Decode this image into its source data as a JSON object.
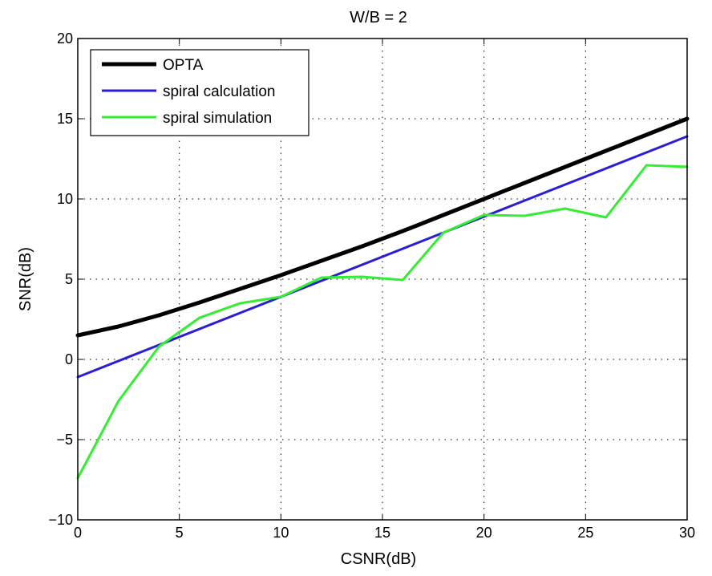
{
  "chart_data": {
    "type": "line",
    "title": "W/B = 2",
    "xlabel": "CSNR(dB)",
    "ylabel": "SNR(dB)",
    "xlim": [
      0,
      30
    ],
    "ylim": [
      -10,
      20
    ],
    "xticks": [
      0,
      5,
      10,
      15,
      20,
      25,
      30
    ],
    "yticks": [
      -10,
      -5,
      0,
      5,
      10,
      15,
      20
    ],
    "xtick_labels": [
      "0",
      "5",
      "10",
      "15",
      "20",
      "25",
      "30"
    ],
    "ytick_labels": [
      "−10",
      "−5",
      "0",
      "5",
      "10",
      "15",
      "20"
    ],
    "grid": true,
    "legend_position": "top-left",
    "series": [
      {
        "name": "OPTA",
        "color": "#000000",
        "x": [
          0,
          2,
          4,
          6,
          8,
          10,
          12,
          14,
          16,
          18,
          20,
          22,
          24,
          26,
          28,
          30
        ],
        "values": [
          1.5,
          2.05,
          2.75,
          3.55,
          4.4,
          5.25,
          6.15,
          7.05,
          8.0,
          9.0,
          10.0,
          11.0,
          12.0,
          13.0,
          14.0,
          15.0
        ]
      },
      {
        "name": "spiral calculation",
        "color": "#2b1fd6",
        "x": [
          0,
          30
        ],
        "values": [
          -1.1,
          13.9
        ]
      },
      {
        "name": "spiral simulation",
        "color": "#33ee33",
        "x": [
          0,
          2,
          4,
          6,
          8,
          10,
          12,
          14,
          16,
          18,
          20,
          22,
          24,
          26,
          28,
          30
        ],
        "values": [
          -7.4,
          -2.6,
          0.8,
          2.6,
          3.5,
          3.9,
          5.1,
          5.15,
          4.95,
          7.9,
          9.0,
          8.95,
          9.4,
          8.85,
          12.1,
          12.0
        ]
      }
    ]
  }
}
